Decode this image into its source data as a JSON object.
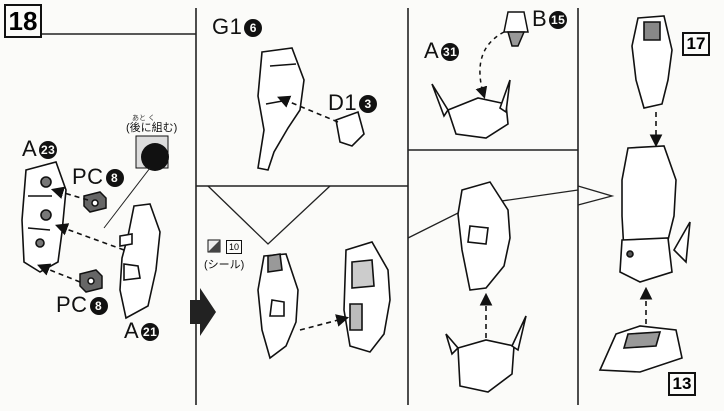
{
  "step": {
    "number": "18"
  },
  "left_panel": {
    "part_a23": {
      "letter": "A",
      "num": "23"
    },
    "pc_top": {
      "letter": "PC",
      "num": "8"
    },
    "pc_bottom": {
      "letter": "PC",
      "num": "8"
    },
    "part_a21": {
      "letter": "A",
      "num": "21"
    },
    "note_ruby": "あと く",
    "note_text": "(後に組む)"
  },
  "top_middle": {
    "part_g1": {
      "letter": "G1",
      "num": "6"
    },
    "part_d1": {
      "letter": "D1",
      "num": "3"
    }
  },
  "bottom_middle": {
    "sticker_number": "10",
    "sticker_label": "(シール)"
  },
  "top_right": {
    "part_a31": {
      "letter": "A",
      "num": "31"
    },
    "part_b15": {
      "letter": "B",
      "num": "15"
    }
  },
  "far_right": {
    "ref_top": "17",
    "ref_bottom": "13"
  }
}
